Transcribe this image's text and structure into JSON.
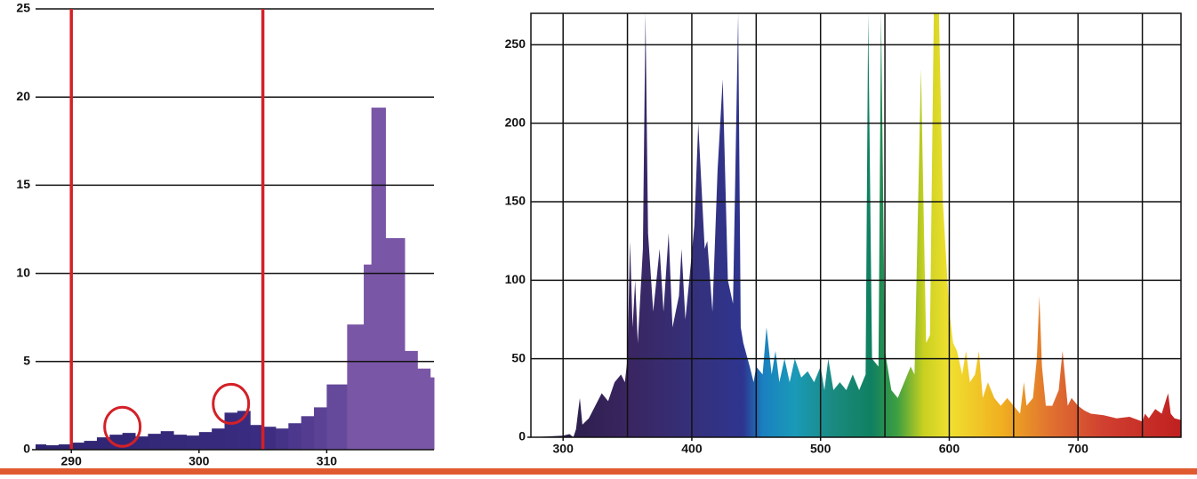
{
  "chart_data": [
    {
      "type": "histogram",
      "bins": [
        287.2,
        288,
        289,
        290,
        291,
        292,
        293,
        294,
        295,
        296,
        297,
        298,
        299,
        300,
        301,
        302,
        303,
        304,
        305,
        306,
        307,
        308,
        309,
        310,
        311.6,
        312.9,
        313.5,
        314.6,
        316.1,
        317.1,
        318.1,
        318.4
      ],
      "values": [
        0.3,
        0.25,
        0.3,
        0.4,
        0.5,
        0.7,
        0.85,
        0.95,
        0.75,
        0.9,
        1.05,
        0.85,
        0.8,
        1.0,
        1.2,
        2.1,
        2.2,
        1.4,
        1.3,
        1.2,
        1.5,
        1.9,
        2.4,
        3.7,
        7.1,
        10.5,
        19.4,
        12.0,
        5.6,
        4.6,
        4.1
      ],
      "gradient": [
        {
          "x": 287,
          "color": "#2d2470"
        },
        {
          "x": 305,
          "color": "#3a2c80"
        },
        {
          "x": 311.5,
          "color": "#6a4c9e"
        },
        {
          "x": 311.6,
          "color": "#7a56a6"
        },
        {
          "x": 319,
          "color": "#7a56a6"
        }
      ],
      "xlim": [
        287.2,
        318.4
      ],
      "ylim": [
        0,
        25
      ],
      "xticks": [
        290,
        300,
        310
      ],
      "yticks": [
        0,
        5,
        10,
        15,
        20,
        25
      ],
      "grid": true,
      "reference_lines": [
        290,
        305
      ],
      "reference_color": "#d42027",
      "circles": [
        {
          "x": 294,
          "y": 1.3
        },
        {
          "x": 302.5,
          "y": 2.6
        }
      ]
    },
    {
      "type": "area",
      "x": [
        275,
        300,
        305,
        308,
        310,
        313,
        315,
        320,
        325,
        330,
        335,
        340,
        345,
        348,
        350,
        352,
        354,
        356,
        358,
        362,
        364,
        366,
        370,
        375,
        378,
        382,
        385,
        390,
        392,
        395,
        398,
        402,
        405,
        410,
        412,
        416,
        420,
        424,
        428,
        432,
        436,
        438,
        440,
        445,
        448,
        450,
        455,
        458,
        462,
        465,
        468,
        472,
        476,
        480,
        485,
        490,
        495,
        500,
        503,
        506,
        510,
        515,
        520,
        525,
        530,
        535,
        537,
        540,
        545,
        547,
        550,
        555,
        560,
        565,
        570,
        573,
        578,
        582,
        585,
        588,
        592,
        595,
        600,
        603,
        606,
        610,
        613,
        616,
        620,
        623,
        626,
        630,
        635,
        640,
        645,
        650,
        655,
        658,
        660,
        665,
        668,
        670,
        672,
        675,
        680,
        685,
        688,
        692,
        695,
        700,
        705,
        710,
        720,
        730,
        740,
        750,
        752,
        755,
        760,
        765,
        770,
        772,
        775,
        780
      ],
      "values": [
        0,
        1,
        2,
        0,
        5,
        25,
        8,
        12,
        20,
        28,
        23,
        35,
        40,
        35,
        50,
        125,
        70,
        100,
        60,
        120,
        270,
        130,
        80,
        120,
        80,
        130,
        70,
        90,
        120,
        75,
        100,
        135,
        200,
        120,
        125,
        80,
        170,
        228,
        100,
        85,
        270,
        70,
        60,
        45,
        35,
        45,
        40,
        70,
        40,
        55,
        35,
        50,
        35,
        50,
        38,
        42,
        35,
        45,
        30,
        50,
        30,
        35,
        30,
        40,
        30,
        40,
        270,
        50,
        45,
        270,
        55,
        30,
        25,
        35,
        45,
        40,
        235,
        60,
        65,
        270,
        270,
        150,
        80,
        60,
        55,
        40,
        55,
        35,
        40,
        55,
        25,
        35,
        25,
        20,
        25,
        20,
        15,
        35,
        20,
        25,
        50,
        90,
        45,
        20,
        20,
        30,
        55,
        20,
        25,
        20,
        17,
        15,
        14,
        12,
        13,
        10,
        15,
        12,
        18,
        15,
        28,
        15,
        12,
        11
      ],
      "gradient": [
        {
          "x": 300,
          "color": "#2a1e4a"
        },
        {
          "x": 350,
          "color": "#3a2560"
        },
        {
          "x": 400,
          "color": "#35307a"
        },
        {
          "x": 440,
          "color": "#2e3590"
        },
        {
          "x": 455,
          "color": "#1a80c0"
        },
        {
          "x": 480,
          "color": "#1a9ab8"
        },
        {
          "x": 510,
          "color": "#1a8a80"
        },
        {
          "x": 540,
          "color": "#108060"
        },
        {
          "x": 560,
          "color": "#40a040"
        },
        {
          "x": 580,
          "color": "#c8d020"
        },
        {
          "x": 600,
          "color": "#f0e030"
        },
        {
          "x": 640,
          "color": "#f0b020"
        },
        {
          "x": 680,
          "color": "#e07030"
        },
        {
          "x": 720,
          "color": "#d04030"
        },
        {
          "x": 780,
          "color": "#c02020"
        }
      ],
      "xlim": [
        275,
        780
      ],
      "ylim": [
        0,
        270
      ],
      "xticks": [
        300,
        400,
        500,
        600,
        700
      ],
      "yticks": [
        0,
        50,
        100,
        150,
        200,
        250
      ],
      "xgrid": [
        300,
        350,
        400,
        450,
        500,
        550,
        600,
        650,
        700,
        750
      ],
      "grid": true
    }
  ]
}
